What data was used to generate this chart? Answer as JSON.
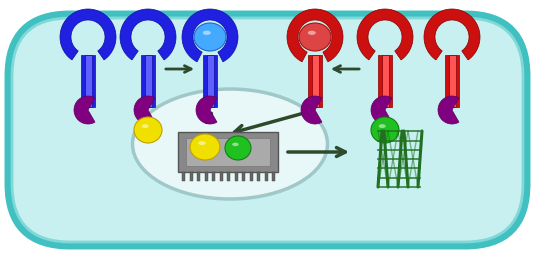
{
  "cell_bg": "#c8f0f0",
  "cell_border": "#40c0c0",
  "cell_border2": "#80d8d8",
  "nucleus_bg": "#e8f8f8",
  "nucleus_border": "#a0c8c8",
  "blue_receptor": "#2020e0",
  "blue_dark": "#1010a0",
  "blue_light": "#6060ff",
  "blue_ball": "#44aaff",
  "blue_ball_dark": "#2266cc",
  "red_receptor": "#cc1010",
  "red_dark": "#880000",
  "red_light": "#ff5555",
  "red_ball": "#dd4444",
  "red_ball_dark": "#aa1111",
  "purple": "#800080",
  "purple_dark": "#600060",
  "yellow": "#f0e000",
  "yellow_dark": "#c0a000",
  "green_ball": "#20c020",
  "green_dark": "#108010",
  "green_protein": "#207020",
  "chip_body": "#888888",
  "chip_dark": "#555555",
  "chip_inner": "#aaaaaa",
  "chip_inner_dark": "#777777",
  "chip_pins": "#666666",
  "chip_pins_dark": "#444444",
  "arrow_color": "#2d4a2d",
  "figsize": [
    5.35,
    2.62
  ],
  "dpi": 100
}
